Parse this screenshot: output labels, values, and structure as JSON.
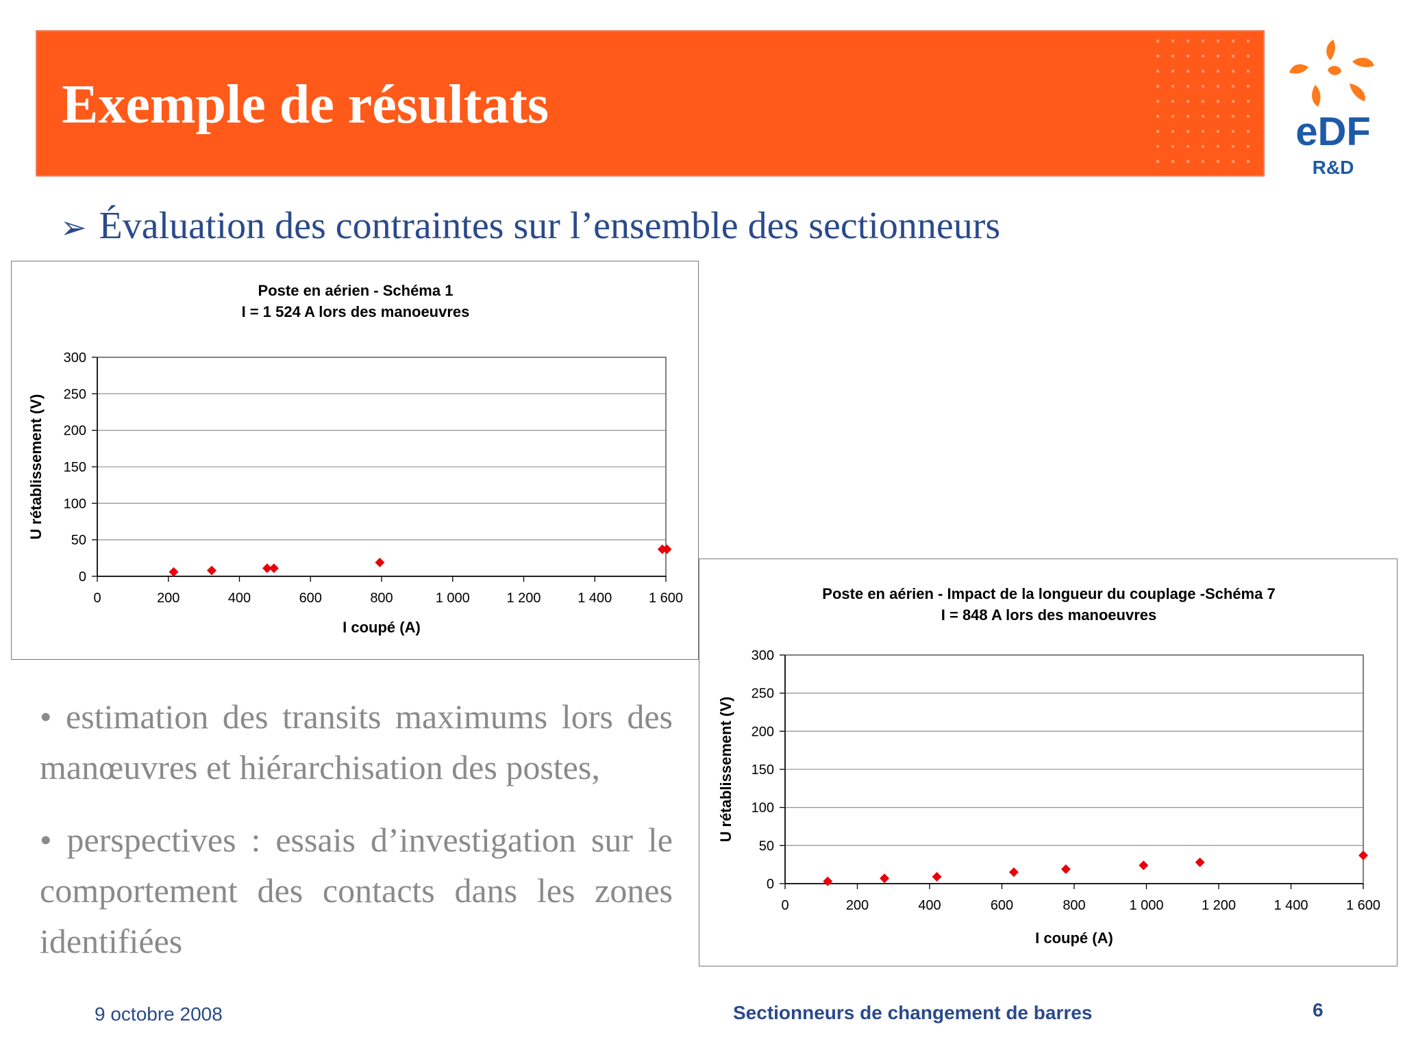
{
  "slide": {
    "title": "Exemple de résultats",
    "subtitle": "Évaluation des contraintes sur l’ensemble des sectionneurs",
    "bullets": [
      "• estimation des transits maximums lors des manœuvres et hiérarchisation des postes,",
      "• perspectives : essais d’investigation sur le comportement des contacts dans les zones identifiées"
    ],
    "footer": {
      "date": "9 octobre 2008",
      "title": "Sectionneurs de changement de barres",
      "page": "6"
    }
  },
  "logo": {
    "brand": "eDF",
    "sub": "R&D"
  },
  "colors": {
    "banner": "#ff5a1a",
    "text_blue": "#2a4a8a",
    "marker": "#e8000b",
    "logo_blue": "#1e5aa8",
    "logo_orange": "#ff7a1a"
  },
  "chart_data": [
    {
      "type": "scatter",
      "title": "Poste en aérien - Schéma 1",
      "subtitle": "I = 1 524 A lors des manoeuvres",
      "xlabel": "I coupé (A)",
      "ylabel": "U rétablissement (V)",
      "xlim": [
        0,
        1600
      ],
      "ylim": [
        0,
        300
      ],
      "xticks": [
        0,
        200,
        400,
        600,
        800,
        1000,
        1200,
        1400,
        1600
      ],
      "xtick_labels": [
        "0",
        "200",
        "400",
        "600",
        "800",
        "1 000",
        "1 200",
        "1 400",
        "1 600"
      ],
      "yticks": [
        0,
        50,
        100,
        150,
        200,
        250,
        300
      ],
      "ytick_labels": [
        "0",
        "50",
        "100",
        "150",
        "200",
        "250",
        "300"
      ],
      "grid": true,
      "series": [
        {
          "name": "U rétablissement",
          "color": "#e8000b",
          "x": [
            215,
            322,
            478,
            497,
            795,
            1590,
            1603
          ],
          "y": [
            6,
            8,
            11,
            11,
            19,
            37,
            37
          ]
        }
      ]
    },
    {
      "type": "scatter",
      "title": "Poste en aérien - Impact de la longueur du couplage -Schéma 7",
      "subtitle": "I = 848 A lors des manoeuvres",
      "xlabel": "I coupé (A)",
      "ylabel": "U rétablissement (V)",
      "xlim": [
        0,
        1600
      ],
      "ylim": [
        0,
        300
      ],
      "xticks": [
        0,
        200,
        400,
        600,
        800,
        1000,
        1200,
        1400,
        1600
      ],
      "xtick_labels": [
        "0",
        "200",
        "400",
        "600",
        "800",
        "1 000",
        "1 200",
        "1 400",
        "1 600"
      ],
      "yticks": [
        0,
        50,
        100,
        150,
        200,
        250,
        300
      ],
      "ytick_labels": [
        "0",
        "50",
        "100",
        "150",
        "200",
        "250",
        "300"
      ],
      "grid": true,
      "series": [
        {
          "name": "U rétablissement",
          "color": "#e8000b",
          "x": [
            118,
            275,
            420,
            633,
            777,
            992,
            1148,
            1600
          ],
          "y": [
            3,
            7,
            9,
            15,
            19,
            24,
            28,
            37
          ]
        }
      ]
    }
  ]
}
